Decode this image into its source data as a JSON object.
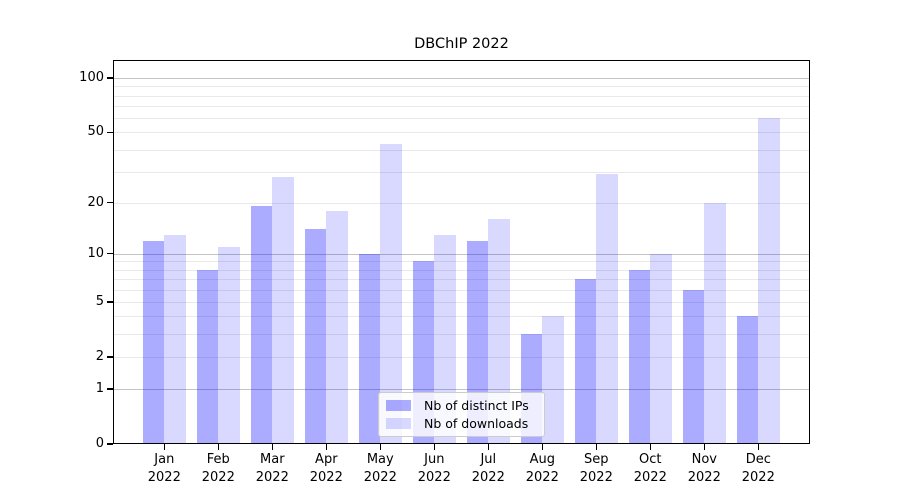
{
  "figure": {
    "title": "DBChIP 2022"
  },
  "chart_data": {
    "type": "bar",
    "title": "DBChIP 2022",
    "xlabel": "",
    "ylabel": "",
    "categories": [
      "Jan 2022",
      "Feb 2022",
      "Mar 2022",
      "Apr 2022",
      "May 2022",
      "Jun 2022",
      "Jul 2022",
      "Aug 2022",
      "Sep 2022",
      "Oct 2022",
      "Nov 2022",
      "Dec 2022"
    ],
    "series": [
      {
        "name": "Nb of distinct IPs",
        "color": "rgba(0,0,255,0.33)",
        "values": [
          12,
          8,
          19,
          14,
          10,
          9,
          12,
          3,
          7,
          8,
          6,
          4
        ]
      },
      {
        "name": "Nb of downloads",
        "color": "rgba(0,0,255,0.15)",
        "values": [
          13,
          11,
          28,
          18,
          43,
          13,
          16,
          4,
          29,
          10,
          20,
          60
        ]
      }
    ],
    "yscale": "log1p",
    "ylim": [
      0,
      128
    ],
    "yticks": [
      0,
      1,
      2,
      5,
      10,
      20,
      50,
      100
    ],
    "grid": {
      "on": true,
      "major_values": [
        1,
        10,
        100
      ],
      "minor_values": [
        2,
        3,
        4,
        5,
        6,
        7,
        8,
        9,
        20,
        30,
        40,
        50,
        60,
        70,
        80,
        90
      ],
      "major_color": "#c4c4c4",
      "minor_color": "#e9e9e9"
    },
    "legend": {
      "position": "lower center",
      "entries": [
        "Nb of distinct IPs",
        "Nb of downloads"
      ]
    },
    "bar_color_note": "translucent blue bars; gridlines visible through bars"
  }
}
